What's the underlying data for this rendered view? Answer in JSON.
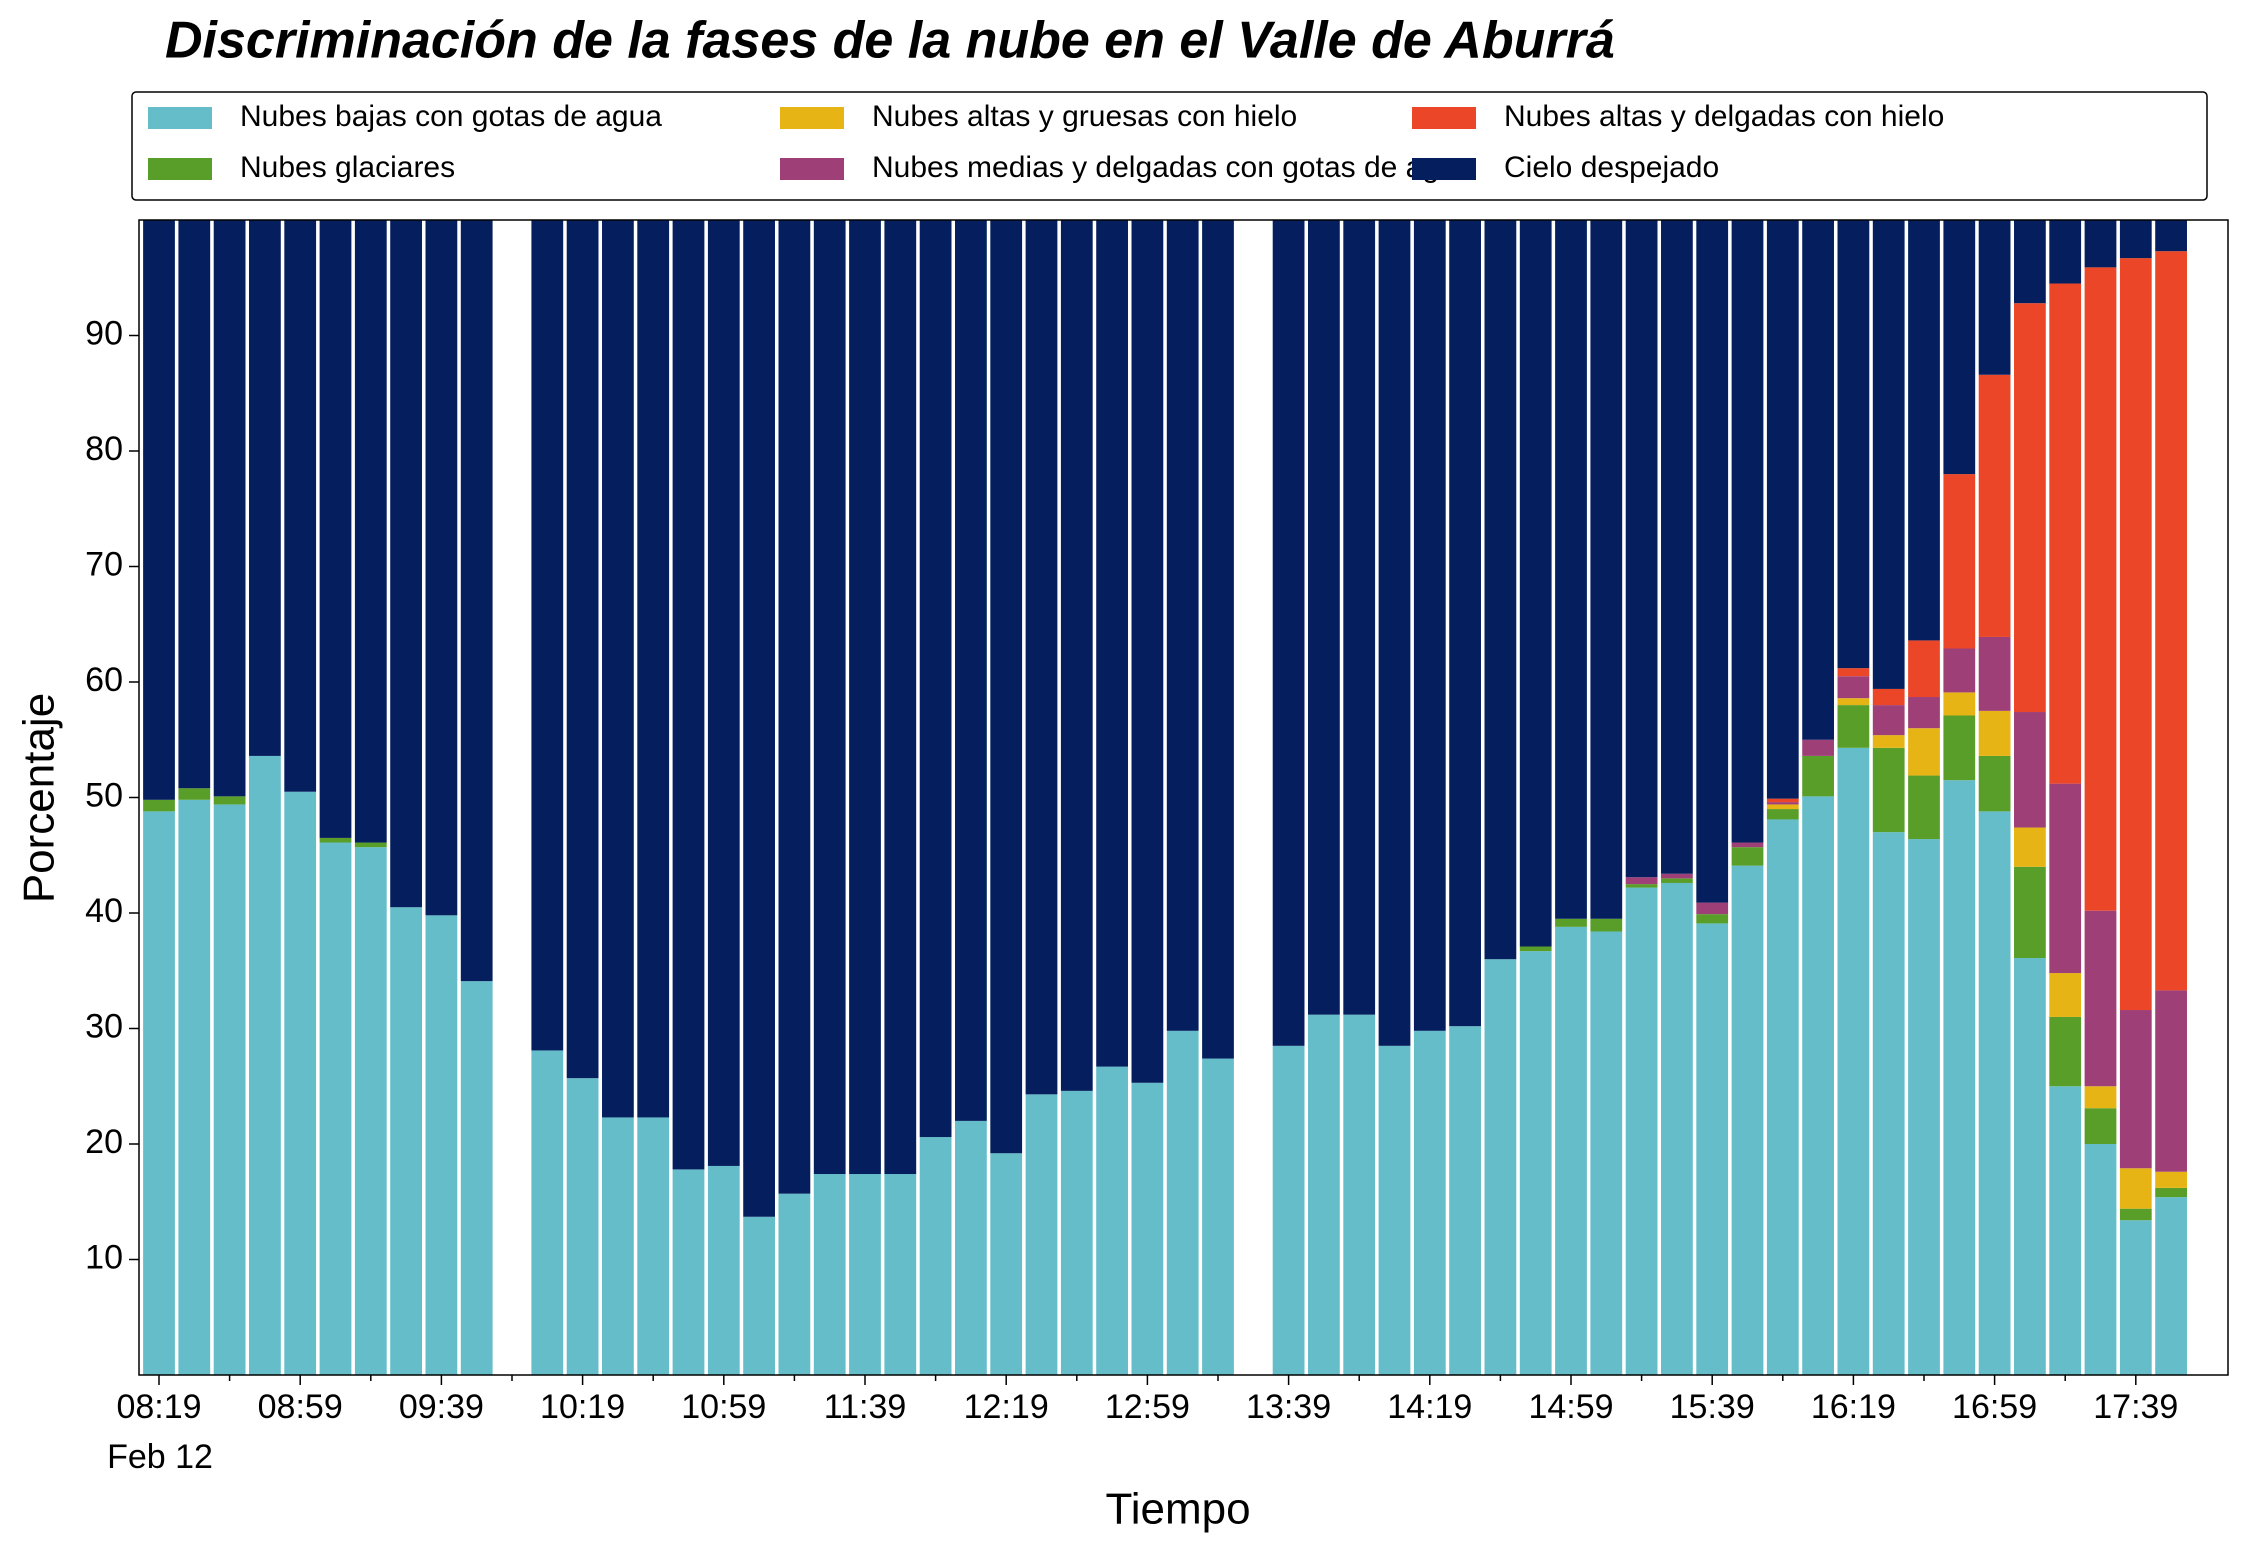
{
  "chart_data": {
    "type": "stacked_bar",
    "title": "Discriminación de la fases de la nube en el Valle de Aburrá",
    "xlabel": "Tiempo",
    "ylabel": "Porcentaje",
    "date_label": "Feb 12",
    "legend_position": "top",
    "categories": [
      "08:19",
      null,
      null,
      null,
      "08:59",
      null,
      null,
      null,
      "09:39",
      null,
      null,
      null,
      "10:19",
      null,
      null,
      null,
      "10:59",
      null,
      null,
      null,
      "11:39",
      null,
      null,
      null,
      "12:19",
      null,
      null,
      null,
      "12:59",
      null,
      null,
      null,
      "13:39",
      null,
      null,
      null,
      "14:19",
      null,
      null,
      null,
      "14:59",
      null,
      null,
      null,
      "15:39",
      null,
      null,
      null,
      "16:19",
      null,
      null,
      null,
      "16:59",
      null,
      null,
      null,
      "17:39",
      null
    ],
    "ylim": [
      0,
      100
    ],
    "yticks": [
      10,
      20,
      30,
      40,
      50,
      60,
      70,
      80,
      90
    ],
    "series": [
      {
        "name": "Nubes bajas con gotas de agua",
        "color": "#64bdc8",
        "values": [
          48.8,
          49.8,
          49.4,
          53.6,
          50.5,
          46.1,
          45.7,
          40.5,
          39.8,
          34.1,
          null,
          28.1,
          25.7,
          22.3,
          22.3,
          17.8,
          18.1,
          13.7,
          15.7,
          17.4,
          17.4,
          17.4,
          20.6,
          22.0,
          19.2,
          24.3,
          24.6,
          26.7,
          25.3,
          29.8,
          27.4,
          null,
          28.5,
          31.2,
          31.2,
          28.5,
          29.8,
          30.2,
          36.0,
          36.7,
          38.8,
          38.4,
          42.2,
          42.6,
          39.1,
          44.1,
          48.1,
          50.1,
          54.3,
          47.0,
          46.4,
          51.5,
          48.8,
          36.1,
          25.0,
          20.0,
          13.4,
          15.4
        ]
      },
      {
        "name": "Nubes glaciares",
        "color": "#5a9e2a",
        "values": [
          1.0,
          1.0,
          0.7,
          0,
          0,
          0.4,
          0.4,
          0,
          0,
          0,
          null,
          0,
          0,
          0,
          0,
          0,
          0,
          0,
          0,
          0,
          0,
          0,
          0,
          0,
          0,
          0,
          0,
          0,
          0,
          0,
          0,
          null,
          0,
          0,
          0,
          0,
          0,
          0,
          0,
          0.4,
          0.7,
          1.1,
          0.3,
          0.4,
          0.8,
          1.6,
          0.9,
          3.5,
          3.7,
          7.3,
          5.5,
          5.6,
          4.8,
          7.9,
          6.0,
          3.1,
          1.0,
          0.8
        ]
      },
      {
        "name": "Nubes altas y gruesas con hielo",
        "color": "#e6b414",
        "values": [
          0,
          0,
          0,
          0,
          0,
          0,
          0,
          0,
          0,
          0,
          null,
          0,
          0,
          0,
          0,
          0,
          0,
          0,
          0,
          0,
          0,
          0,
          0,
          0,
          0,
          0,
          0,
          0,
          0,
          0,
          0,
          null,
          0,
          0,
          0,
          0,
          0,
          0,
          0,
          0,
          0,
          0,
          0,
          0,
          0,
          0,
          0.4,
          0,
          0.6,
          1.1,
          4.1,
          2.0,
          3.9,
          3.4,
          3.8,
          1.9,
          3.5,
          1.4
        ]
      },
      {
        "name": "Nubes medias y delgadas con gotas de agua",
        "color": "#9e3f78",
        "values": [
          0,
          0,
          0,
          0,
          0,
          0,
          0,
          0,
          0,
          0,
          null,
          0,
          0,
          0,
          0,
          0,
          0,
          0,
          0,
          0,
          0,
          0,
          0,
          0,
          0,
          0,
          0,
          0,
          0,
          0,
          0,
          null,
          0,
          0,
          0,
          0,
          0,
          0,
          0,
          0,
          0,
          0,
          0.6,
          0.4,
          1.0,
          0.4,
          0.2,
          1.4,
          1.9,
          2.6,
          2.7,
          3.8,
          6.4,
          10.0,
          16.4,
          15.2,
          13.7,
          15.7
        ]
      },
      {
        "name": "Nubes altas y delgadas con hielo",
        "color": "#ec4628",
        "values": [
          0,
          0,
          0,
          0,
          0,
          0,
          0,
          0,
          0,
          0,
          null,
          0,
          0,
          0,
          0,
          0,
          0,
          0,
          0,
          0,
          0,
          0,
          0,
          0,
          0,
          0,
          0,
          0,
          0,
          0,
          0,
          null,
          0,
          0,
          0,
          0,
          0,
          0,
          0,
          0,
          0,
          0,
          0,
          0,
          0,
          0,
          0.3,
          0,
          0.7,
          1.4,
          4.9,
          15.1,
          22.7,
          35.4,
          43.3,
          55.7,
          65.1,
          64.0
        ]
      },
      {
        "name": "Cielo despejado",
        "color": "#041e5e",
        "values": [
          50.2,
          49.2,
          49.9,
          46.4,
          49.5,
          53.5,
          53.9,
          59.5,
          60.2,
          65.9,
          null,
          71.9,
          74.3,
          77.7,
          77.7,
          82.2,
          81.9,
          86.3,
          84.3,
          82.6,
          82.6,
          82.6,
          79.4,
          78.0,
          80.8,
          75.7,
          75.4,
          73.3,
          74.7,
          70.2,
          72.6,
          null,
          71.5,
          68.8,
          68.8,
          71.5,
          70.2,
          69.8,
          64.0,
          62.9,
          60.5,
          60.5,
          56.9,
          56.6,
          59.1,
          53.9,
          50.1,
          45.0,
          38.8,
          40.6,
          36.4,
          22.0,
          13.4,
          7.2,
          5.5,
          4.1,
          3.3,
          2.7
        ]
      }
    ]
  }
}
